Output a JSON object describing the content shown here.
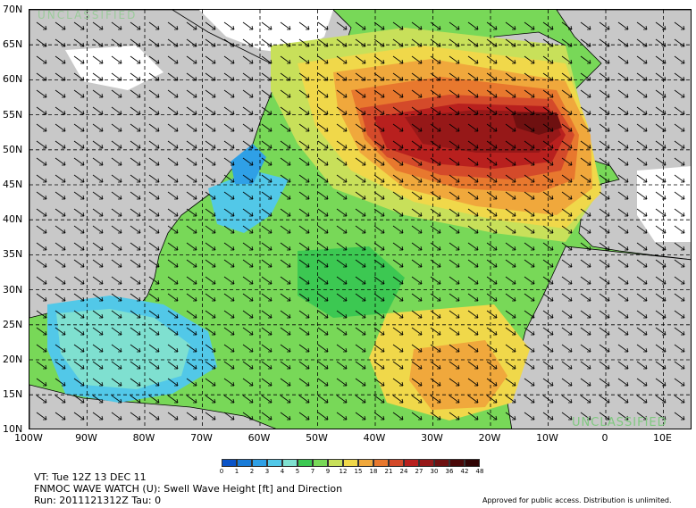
{
  "map": {
    "lat_labels": [
      "70N",
      "65N",
      "60N",
      "55N",
      "50N",
      "45N",
      "40N",
      "35N",
      "30N",
      "25N",
      "20N",
      "15N",
      "10N"
    ],
    "lon_labels": [
      "100W",
      "90W",
      "80W",
      "70W",
      "60W",
      "50W",
      "40W",
      "30W",
      "20W",
      "10W",
      "0",
      "10E"
    ],
    "top_watermark": "UNCLASSIFIED",
    "bottom_watermark": "UNCLASSIFIED",
    "colors": {
      "land": "#c8c8c8",
      "ice": "#ffffff",
      "levels": [
        "#0b54c8",
        "#1a7cd8",
        "#2fa0e6",
        "#52c8e8",
        "#7fe0d0",
        "#3cc852",
        "#78d858",
        "#c8e05a",
        "#f0d84a",
        "#f0a83c",
        "#e8782e",
        "#d44a2a",
        "#b8201e",
        "#961818",
        "#6e1010"
      ]
    },
    "arrow_direction": "southeast swell arrows across the basin"
  },
  "legend": {
    "labels": [
      "0",
      "1",
      "2",
      "3",
      "4",
      "5",
      "7",
      "9",
      "12",
      "15",
      "18",
      "21",
      "24",
      "27",
      "30",
      "36",
      "42",
      "48"
    ],
    "colors": [
      "#0b54c8",
      "#1a7cd8",
      "#2fa0e6",
      "#52c8e8",
      "#7fe0d0",
      "#3cc852",
      "#78d858",
      "#c8e05a",
      "#f0d84a",
      "#f0a83c",
      "#e8782e",
      "#d44a2a",
      "#b8201e",
      "#961818",
      "#6e1010",
      "#4a0808",
      "#300404"
    ]
  },
  "footer": {
    "valid_time": "VT: Tue 12Z 13 DEC 11",
    "product": "FNMOC WAVE WATCH (U): Swell Wave Height [ft] and Direction",
    "run": "Run: 2011121312Z Tau: 0",
    "approval": "Approved for public access. Distribution is unlimited."
  }
}
